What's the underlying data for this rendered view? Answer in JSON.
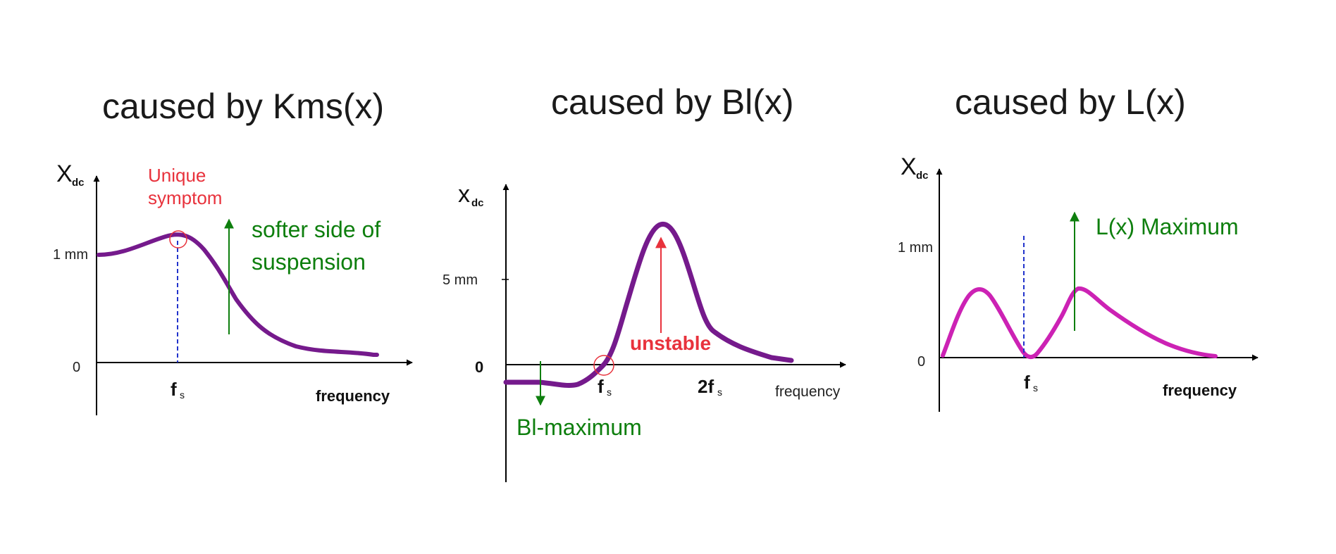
{
  "colors": {
    "purple": "#751a8c",
    "magenta": "#cc22b4",
    "green": "#0e7f0e",
    "red": "#e8323c",
    "dashed_blue": "#2233cc"
  },
  "panel1": {
    "title": "caused by Kms(x)",
    "y_symbol": "X",
    "y_sub": "dc",
    "tick_top": "1 mm",
    "tick_zero": "0",
    "fs_main": "f",
    "fs_sub": "s",
    "xlabel": "frequency",
    "annotation_red": [
      "Unique",
      "symptom"
    ],
    "annotation_green": [
      "softer side of",
      "suspension"
    ]
  },
  "panel2": {
    "title": "caused by Bl(x)",
    "y_symbol": "x",
    "y_sub": "dc",
    "tick_top": "5 mm",
    "tick_zero": "0",
    "fs_main": "f",
    "fs_sub": "s",
    "f2s_main": "2f",
    "f2s_sub": "s",
    "xlabel": "frequency",
    "annotation_red": "unstable",
    "annotation_green": "Bl-maximum"
  },
  "panel3": {
    "title": "caused by L(x)",
    "y_symbol": "X",
    "y_sub": "dc",
    "tick_top": "1 mm",
    "tick_zero": "0",
    "fs_main": "f",
    "fs_sub": "s",
    "xlabel": "frequency",
    "annotation_green": "L(x) Maximum"
  }
}
